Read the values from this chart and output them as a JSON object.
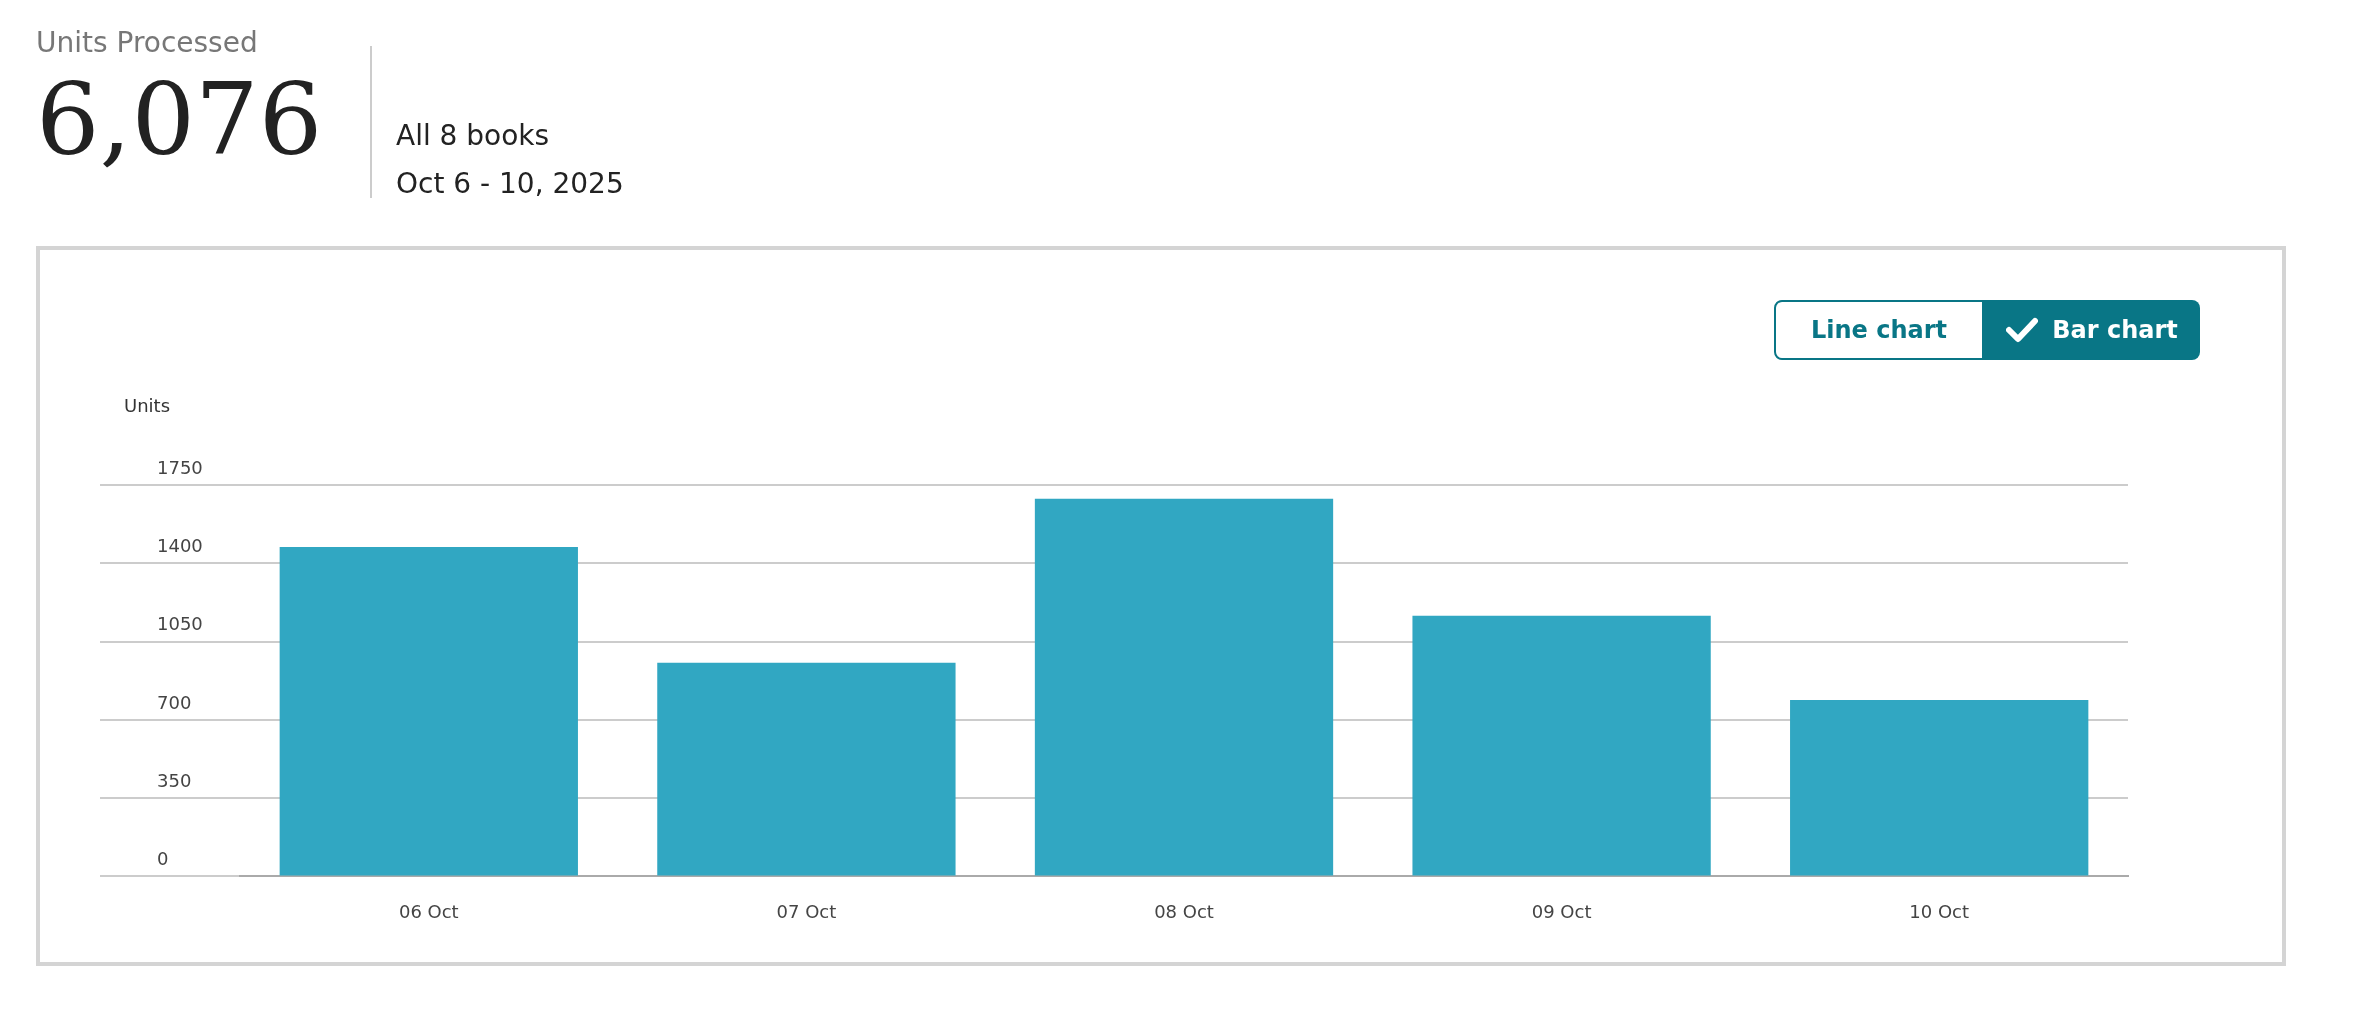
{
  "chart_data": {
    "type": "bar",
    "title": "Units Processed",
    "subtitle": "6,076",
    "annotations": [
      "All 8 books",
      "Oct 6 - 10, 2025",
      "Line chart",
      "Bar chart"
    ],
    "ylabel": "Units",
    "categories": [
      "06 Oct",
      "07 Oct",
      "08 Oct",
      "09 Oct",
      "10 Oct"
    ],
    "values": [
      1473,
      955,
      1688,
      1165,
      789
    ],
    "color": "#31a7c2",
    "ylim": [
      0,
      1750
    ],
    "yticks": [
      0,
      350,
      700,
      1050,
      1400,
      1750
    ],
    "grid": "y"
  }
}
